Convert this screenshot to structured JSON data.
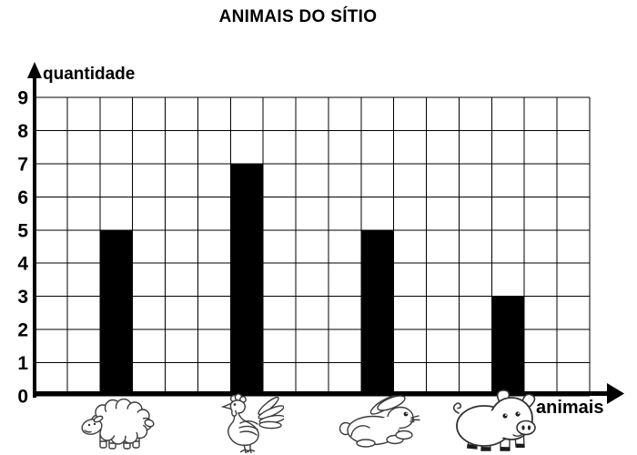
{
  "header": {
    "title": "ANIMAIS DO SÍTIO"
  },
  "axes": {
    "y_label": "quantidade",
    "x_label": "animais"
  },
  "colors": {
    "bar": "#000000",
    "grid": "#000000",
    "background": "#ffffff",
    "text": "#000000"
  },
  "chart_data": {
    "type": "bar",
    "title": "ANIMAIS DO SÍTIO",
    "categories": [
      "ovelha",
      "galinha",
      "coelho",
      "porco"
    ],
    "category_icons": [
      "sheep-icon",
      "hen-icon",
      "rabbit-icon",
      "pig-icon"
    ],
    "values": [
      5,
      7,
      5,
      3
    ],
    "xlabel": "animais",
    "ylabel": "quantidade",
    "ylim": [
      0,
      9
    ],
    "y_ticks": [
      0,
      1,
      2,
      3,
      4,
      5,
      6,
      7,
      8,
      9
    ],
    "grid": true,
    "grid_columns": 17,
    "bar_columns": [
      3,
      7,
      11,
      15
    ],
    "bar_color": "#000000",
    "legend": "none"
  }
}
